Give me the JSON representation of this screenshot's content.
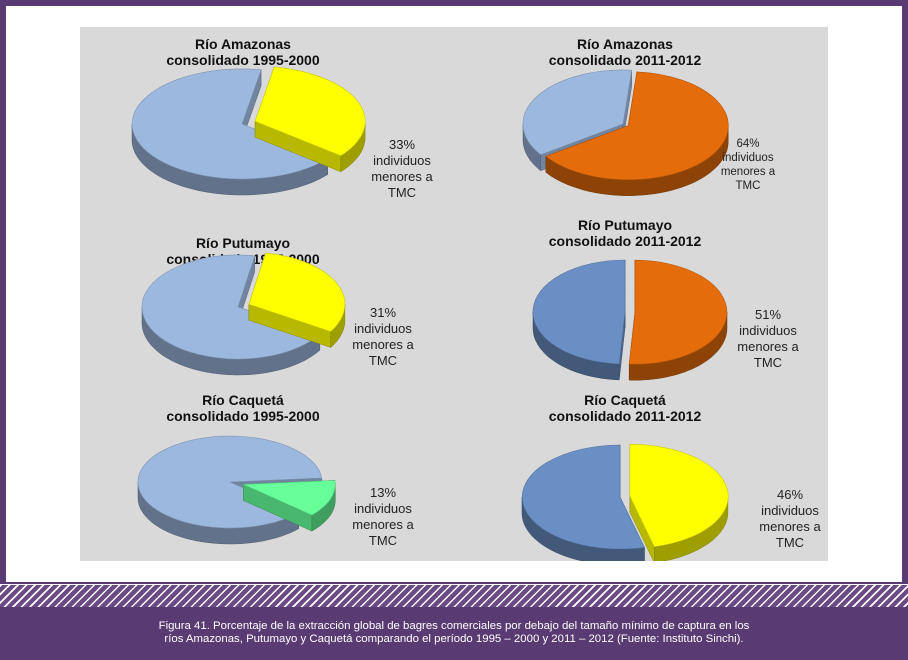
{
  "caption": {
    "line1": "Figura 41. Porcentaje de la extracción global de bagres comerciales por debajo del tamaño mínimo de captura en los",
    "line2": "ríos Amazonas, Putumayo y Caquetá comparando el período 1995 – 2000 y 2011 – 2012 (Fuente: Instituto Sinchi)."
  },
  "chart_data": [
    {
      "type": "pie",
      "title": [
        "Río Amazonas",
        "consolidado 1995-2000"
      ],
      "slices": [
        {
          "label": "individuos menores a TMC",
          "value": 33,
          "color": "#ffff00"
        },
        {
          "label": "",
          "value": 67,
          "color": "#9db8de"
        }
      ],
      "annotation": [
        "33%",
        "individuos",
        "menores a",
        "TMC"
      ]
    },
    {
      "type": "pie",
      "title": [
        "Río Amazonas",
        "consolidado 2011-2012"
      ],
      "slices": [
        {
          "label": "individuos menores a TMC",
          "value": 64,
          "color": "#e46c0a"
        },
        {
          "label": "",
          "value": 36,
          "color": "#9db8de"
        }
      ],
      "annotation": [
        "64%",
        "individuos",
        "menores a",
        "TMC"
      ]
    },
    {
      "type": "pie",
      "title": [
        "Río Putumayo",
        "consolidado 1995-2000"
      ],
      "slices": [
        {
          "label": "individuos menores a TMC",
          "value": 31,
          "color": "#ffff00"
        },
        {
          "label": "",
          "value": 69,
          "color": "#9db8de"
        }
      ],
      "annotation": [
        "31%",
        "individuos",
        "menores a",
        "TMC"
      ]
    },
    {
      "type": "pie",
      "title": [
        "Río Putumayo",
        "consolidado 2011-2012"
      ],
      "slices": [
        {
          "label": "individuos menores a TMC",
          "value": 51,
          "color": "#e46c0a"
        },
        {
          "label": "",
          "value": 49,
          "color": "#6a8fc4"
        }
      ],
      "annotation": [
        "51%",
        "individuos",
        "menores a",
        "TMC"
      ]
    },
    {
      "type": "pie",
      "title": [
        "Río Caquetá",
        "consolidado 1995-2000"
      ],
      "slices": [
        {
          "label": "individuos menores a TMC",
          "value": 13,
          "color": "#66ff99"
        },
        {
          "label": "",
          "value": 87,
          "color": "#9db8de"
        }
      ],
      "annotation": [
        "13%",
        "individuos",
        "menores a",
        "TMC"
      ]
    },
    {
      "type": "pie",
      "title": [
        "Río Caquetá",
        "consolidado 2011-2012"
      ],
      "slices": [
        {
          "label": "individuos menores a TMC",
          "value": 46,
          "color": "#ffff00"
        },
        {
          "label": "",
          "value": 54,
          "color": "#6a8fc4"
        }
      ],
      "annotation": [
        "46%",
        "individuos",
        "menores a",
        "TMC"
      ]
    }
  ]
}
